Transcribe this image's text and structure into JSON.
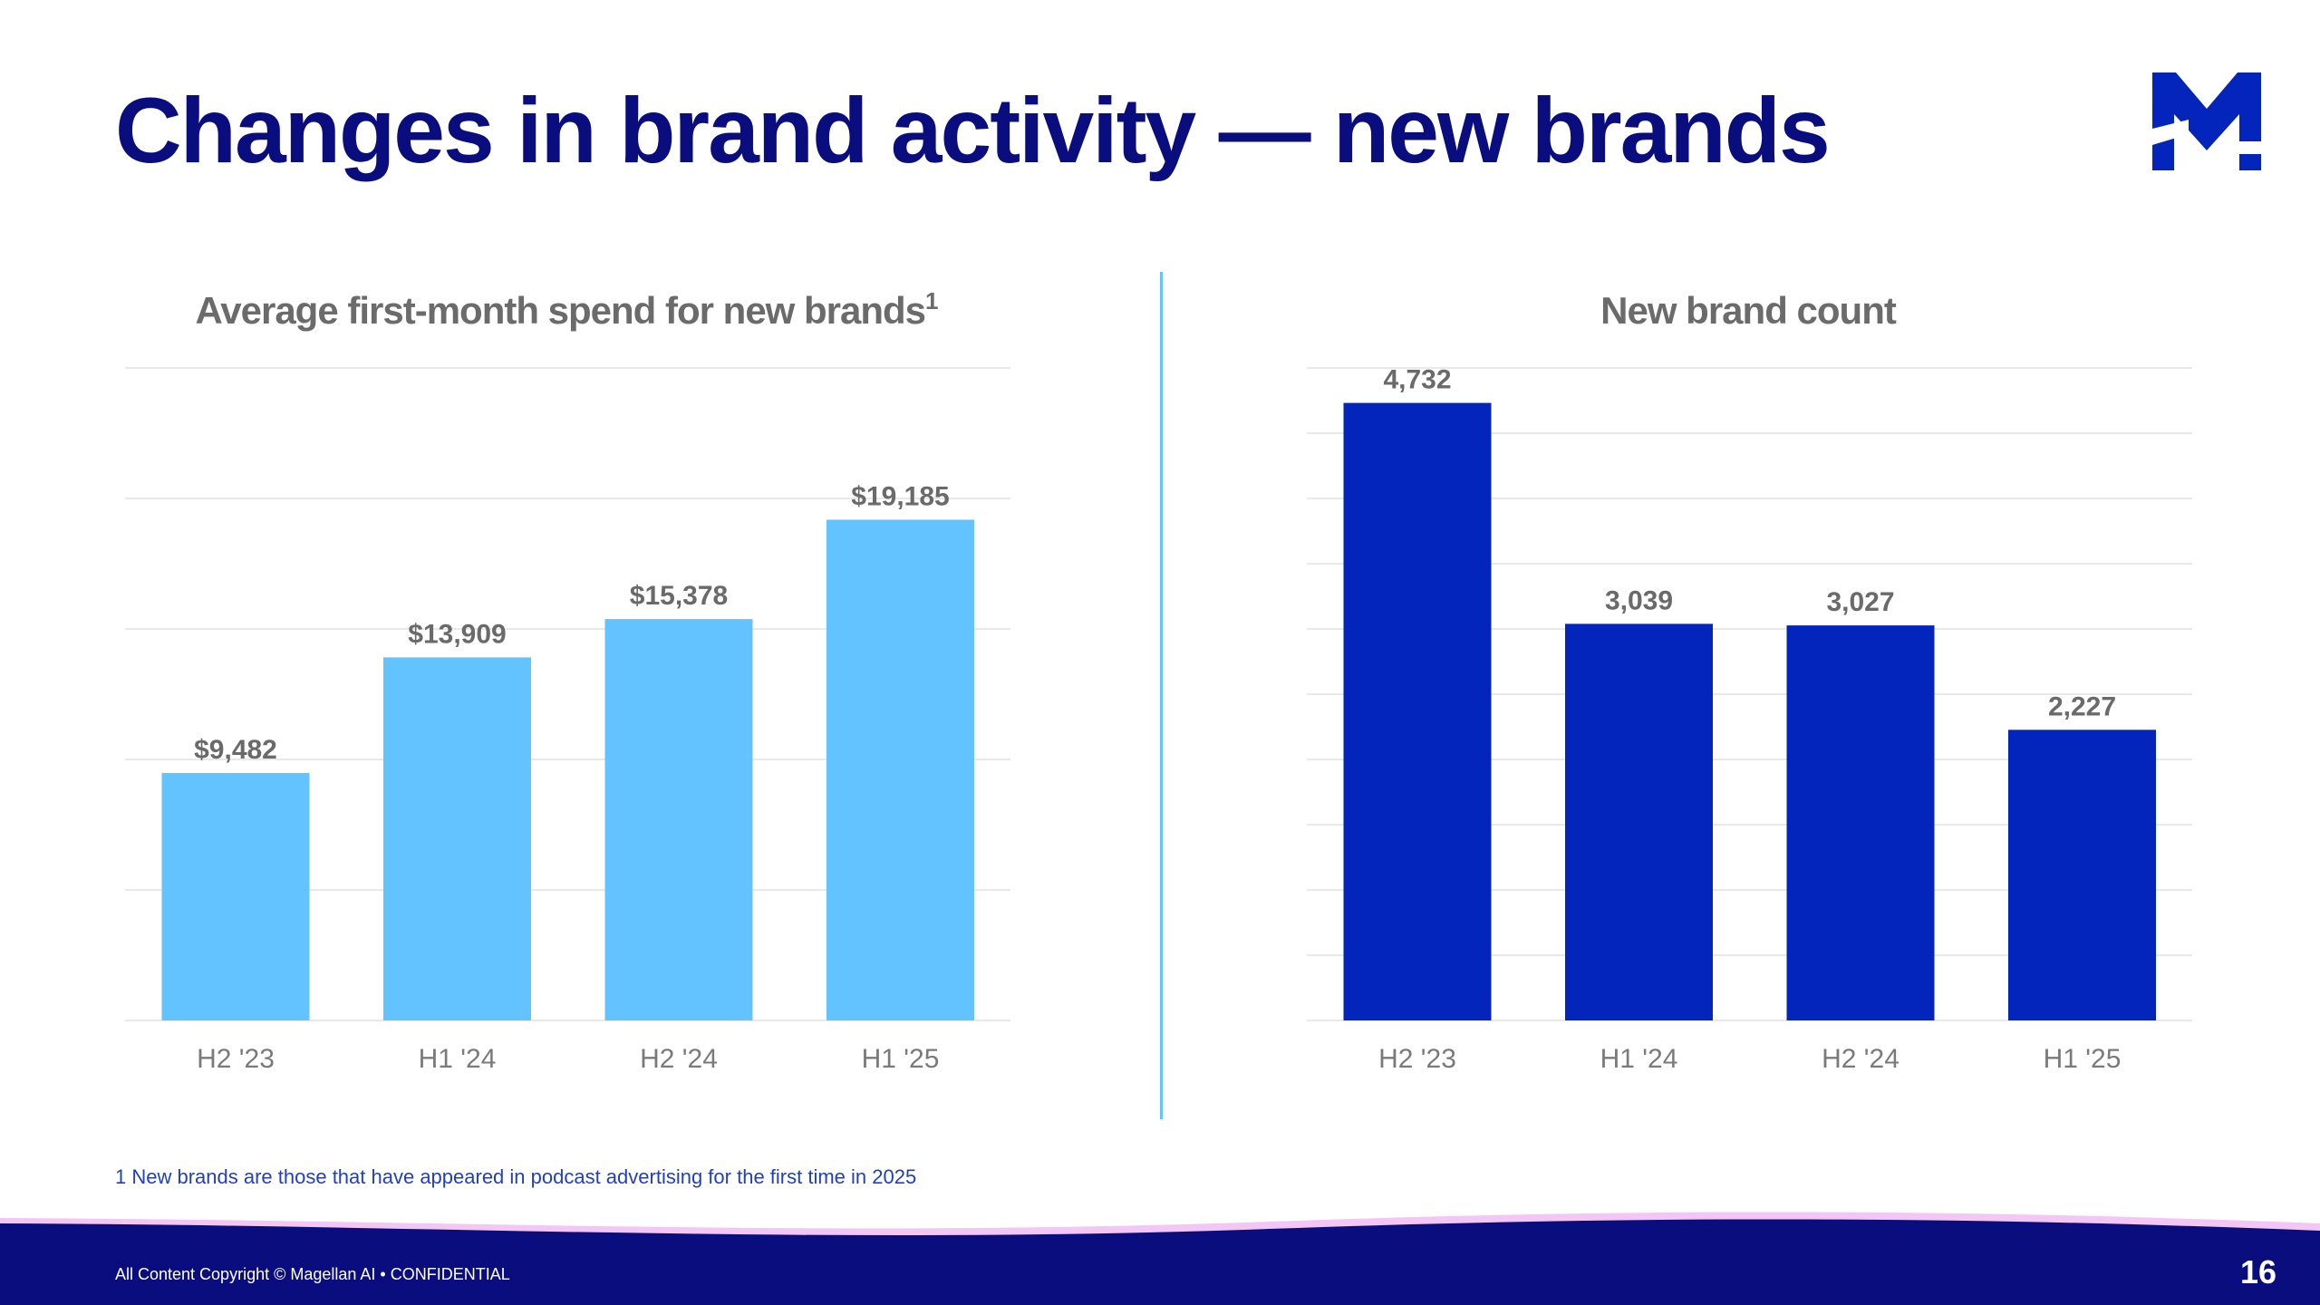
{
  "slide": {
    "title": "Changes in brand activity — new brands",
    "footnote": "1 New brands are those that have appeared in podcast advertising for the first time in 2025",
    "copyright": "All Content Copyright © Magellan AI • CONFIDENTIAL",
    "page_number": "16",
    "logo_icon": "magellan-m-logo"
  },
  "colors": {
    "title": "#0a0d7e",
    "left_bars": "#63c3ff",
    "right_bars": "#0325bb",
    "footer": "#0a0d7e",
    "footer_wave": "#f4c6f5",
    "divider": "#63c3ff"
  },
  "chart_data": [
    {
      "id": "left",
      "type": "bar",
      "title": "Average first-month spend for new brands",
      "title_superscript": "1",
      "categories": [
        "H2 '23",
        "H1 '24",
        "H2 '24",
        "H1 '25"
      ],
      "values": [
        9482,
        13909,
        15378,
        19185
      ],
      "value_labels": [
        "$9,482",
        "$13,909",
        "$15,378",
        "$19,185"
      ],
      "ylim": [
        0,
        25000
      ],
      "gridlines": 5,
      "xlabel": "",
      "ylabel": "",
      "color": "#63c3ff"
    },
    {
      "id": "right",
      "type": "bar",
      "title": "New brand count",
      "title_superscript": "",
      "categories": [
        "H2 '23",
        "H1 '24",
        "H2 '24",
        "H1 '25"
      ],
      "values": [
        4732,
        3039,
        3027,
        2227
      ],
      "value_labels": [
        "4,732",
        "3,039",
        "3,027",
        "2,227"
      ],
      "ylim": [
        0,
        5000
      ],
      "gridlines": 10,
      "xlabel": "",
      "ylabel": "",
      "color": "#0325bb"
    }
  ]
}
